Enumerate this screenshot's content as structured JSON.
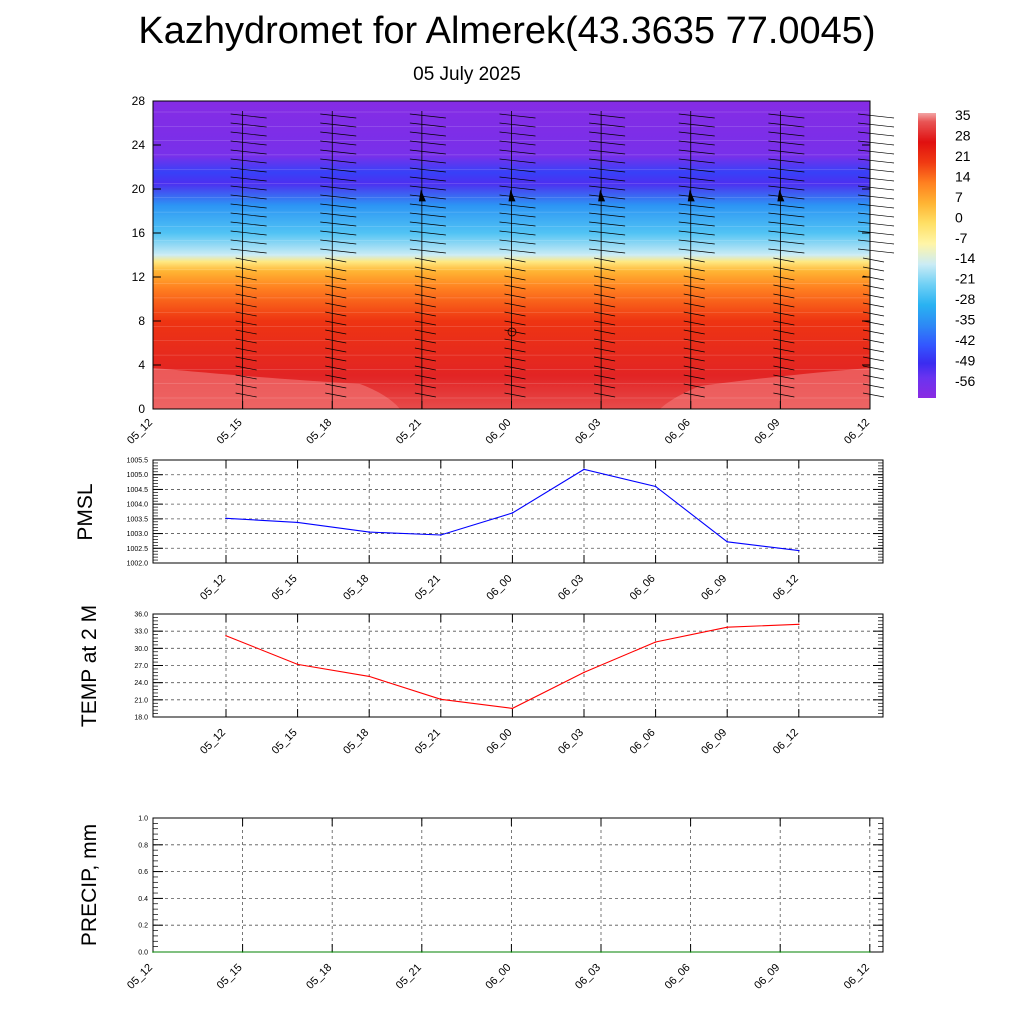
{
  "title": "Kazhydromet for Almerek(43.3635 77.0045)",
  "subtitle": "05 July 2025",
  "chart_data": [
    {
      "type": "heatmap",
      "description": "Time-height cross section of temperature with wind barbs",
      "x_ticks": [
        "05_12",
        "05_15",
        "05_18",
        "05_21",
        "06_00",
        "06_03",
        "06_06",
        "06_09",
        "06_12"
      ],
      "y_ticks": [
        "0",
        "4",
        "8",
        "12",
        "16",
        "20",
        "24",
        "28"
      ],
      "ylim": [
        0,
        28
      ],
      "colorbar_labels": [
        "35",
        "28",
        "21",
        "14",
        "7",
        "0",
        "-7",
        "-14",
        "-21",
        "-28",
        "-35",
        "-42",
        "-49",
        "-56"
      ],
      "colorbar_range": [
        -60,
        38
      ],
      "temperature_profile": [
        {
          "level": 0,
          "value": 34
        },
        {
          "level": 3,
          "value": 30
        },
        {
          "level": 8,
          "value": 22
        },
        {
          "level": 11,
          "value": 14
        },
        {
          "level": 12.5,
          "value": 7
        },
        {
          "level": 13.4,
          "value": -3
        },
        {
          "level": 14,
          "value": -14
        },
        {
          "level": 16,
          "value": -24
        },
        {
          "level": 18.5,
          "value": -33
        },
        {
          "level": 20.5,
          "value": -50
        },
        {
          "level": 21.5,
          "value": -45
        },
        {
          "level": 23,
          "value": -56
        },
        {
          "level": 28,
          "value": -59
        }
      ],
      "colors": {
        "hot": "#e23b3b",
        "cold": "#8a2be2",
        "zero": "#fff7a0"
      }
    },
    {
      "type": "line",
      "ylabel": "PMSL",
      "x": [
        "05_12",
        "05_15",
        "05_18",
        "05_21",
        "06_00",
        "06_03",
        "06_06",
        "06_09",
        "06_12"
      ],
      "ylim": [
        1002.0,
        1005.5
      ],
      "y_ticks": [
        "1002.0",
        "1002.5",
        "1003.0",
        "1003.5",
        "1004.0",
        "1004.5",
        "1005.0",
        "1005.5"
      ],
      "series": [
        {
          "values": [
            1003.52,
            1003.38,
            1003.05,
            1002.95,
            1003.7,
            1005.18,
            1004.6,
            1002.72,
            1002.42
          ],
          "color": "#0000ff"
        }
      ]
    },
    {
      "type": "line",
      "ylabel": "TEMP at 2 M",
      "x": [
        "05_12",
        "05_15",
        "05_18",
        "05_21",
        "06_00",
        "06_03",
        "06_06",
        "06_09",
        "06_12"
      ],
      "ylim": [
        18.0,
        36.0
      ],
      "y_ticks": [
        "18.0",
        "21.0",
        "24.0",
        "27.0",
        "30.0",
        "33.0",
        "36.0"
      ],
      "series": [
        {
          "values": [
            32.2,
            27.2,
            25.1,
            21.1,
            19.5,
            25.8,
            31.1,
            33.7,
            34.2
          ],
          "color": "#ff0000"
        }
      ]
    },
    {
      "type": "line",
      "ylabel": "PRECIP, mm",
      "x": [
        "05_12",
        "05_15",
        "05_18",
        "05_21",
        "06_00",
        "06_03",
        "06_06",
        "06_09",
        "06_12"
      ],
      "ylim": [
        0.0,
        1.0
      ],
      "y_ticks": [
        "0.0",
        "0.2",
        "0.4",
        "0.6",
        "0.8",
        "1.0"
      ],
      "series": [
        {
          "values": [
            0,
            0,
            0,
            0,
            0,
            0,
            0,
            0,
            0
          ],
          "color": "#008000"
        }
      ]
    }
  ]
}
